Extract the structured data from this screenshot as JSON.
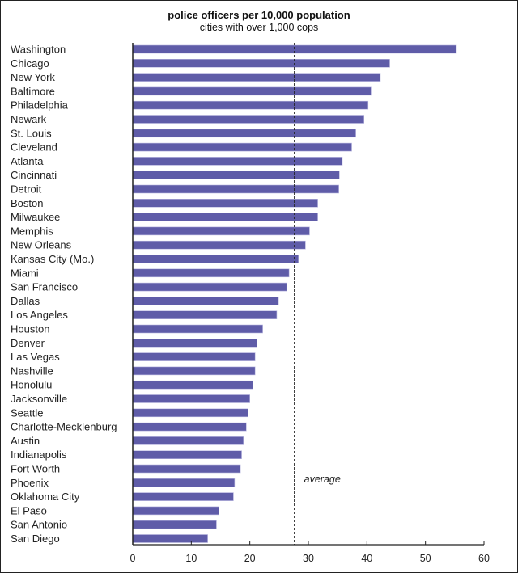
{
  "chart_data": {
    "type": "bar",
    "orientation": "horizontal",
    "title": "police officers per 10,000 population",
    "subtitle": "cities with over 1,000 cops",
    "xlabel": "",
    "ylabel": "",
    "xlim": [
      0,
      60
    ],
    "xticks": [
      0,
      10,
      20,
      30,
      40,
      50,
      60
    ],
    "grid": false,
    "bar_color": "#5f5ca8",
    "categories": [
      "Washington",
      "Chicago",
      "New York",
      "Baltimore",
      "Philadelphia",
      "Newark",
      "St. Louis",
      "Cleveland",
      "Atlanta",
      "Cincinnati",
      "Detroit",
      "Boston",
      "Milwaukee",
      "Memphis",
      "New Orleans",
      "Kansas City (Mo.)",
      "Miami",
      "San Francisco",
      "Dallas",
      "Los Angeles",
      "Houston",
      "Denver",
      "Las Vegas",
      "Nashville",
      "Honolulu",
      "Jacksonville",
      "Seattle",
      "Charlotte-Mecklenburg",
      "Austin",
      "Indianapolis",
      "Fort Worth",
      "Phoenix",
      "Oklahoma City",
      "El Paso",
      "San Antonio",
      "San Diego"
    ],
    "values": [
      55.3,
      43.9,
      42.3,
      40.7,
      40.2,
      39.5,
      38.1,
      37.4,
      35.8,
      35.3,
      35.2,
      31.6,
      31.6,
      30.2,
      29.5,
      28.3,
      26.7,
      26.3,
      24.9,
      24.6,
      22.2,
      21.2,
      20.9,
      20.9,
      20.5,
      20.0,
      19.7,
      19.4,
      18.9,
      18.6,
      18.4,
      17.4,
      17.2,
      14.7,
      14.3,
      12.8
    ],
    "reference_line": {
      "label": "average",
      "value": 27.6
    }
  }
}
